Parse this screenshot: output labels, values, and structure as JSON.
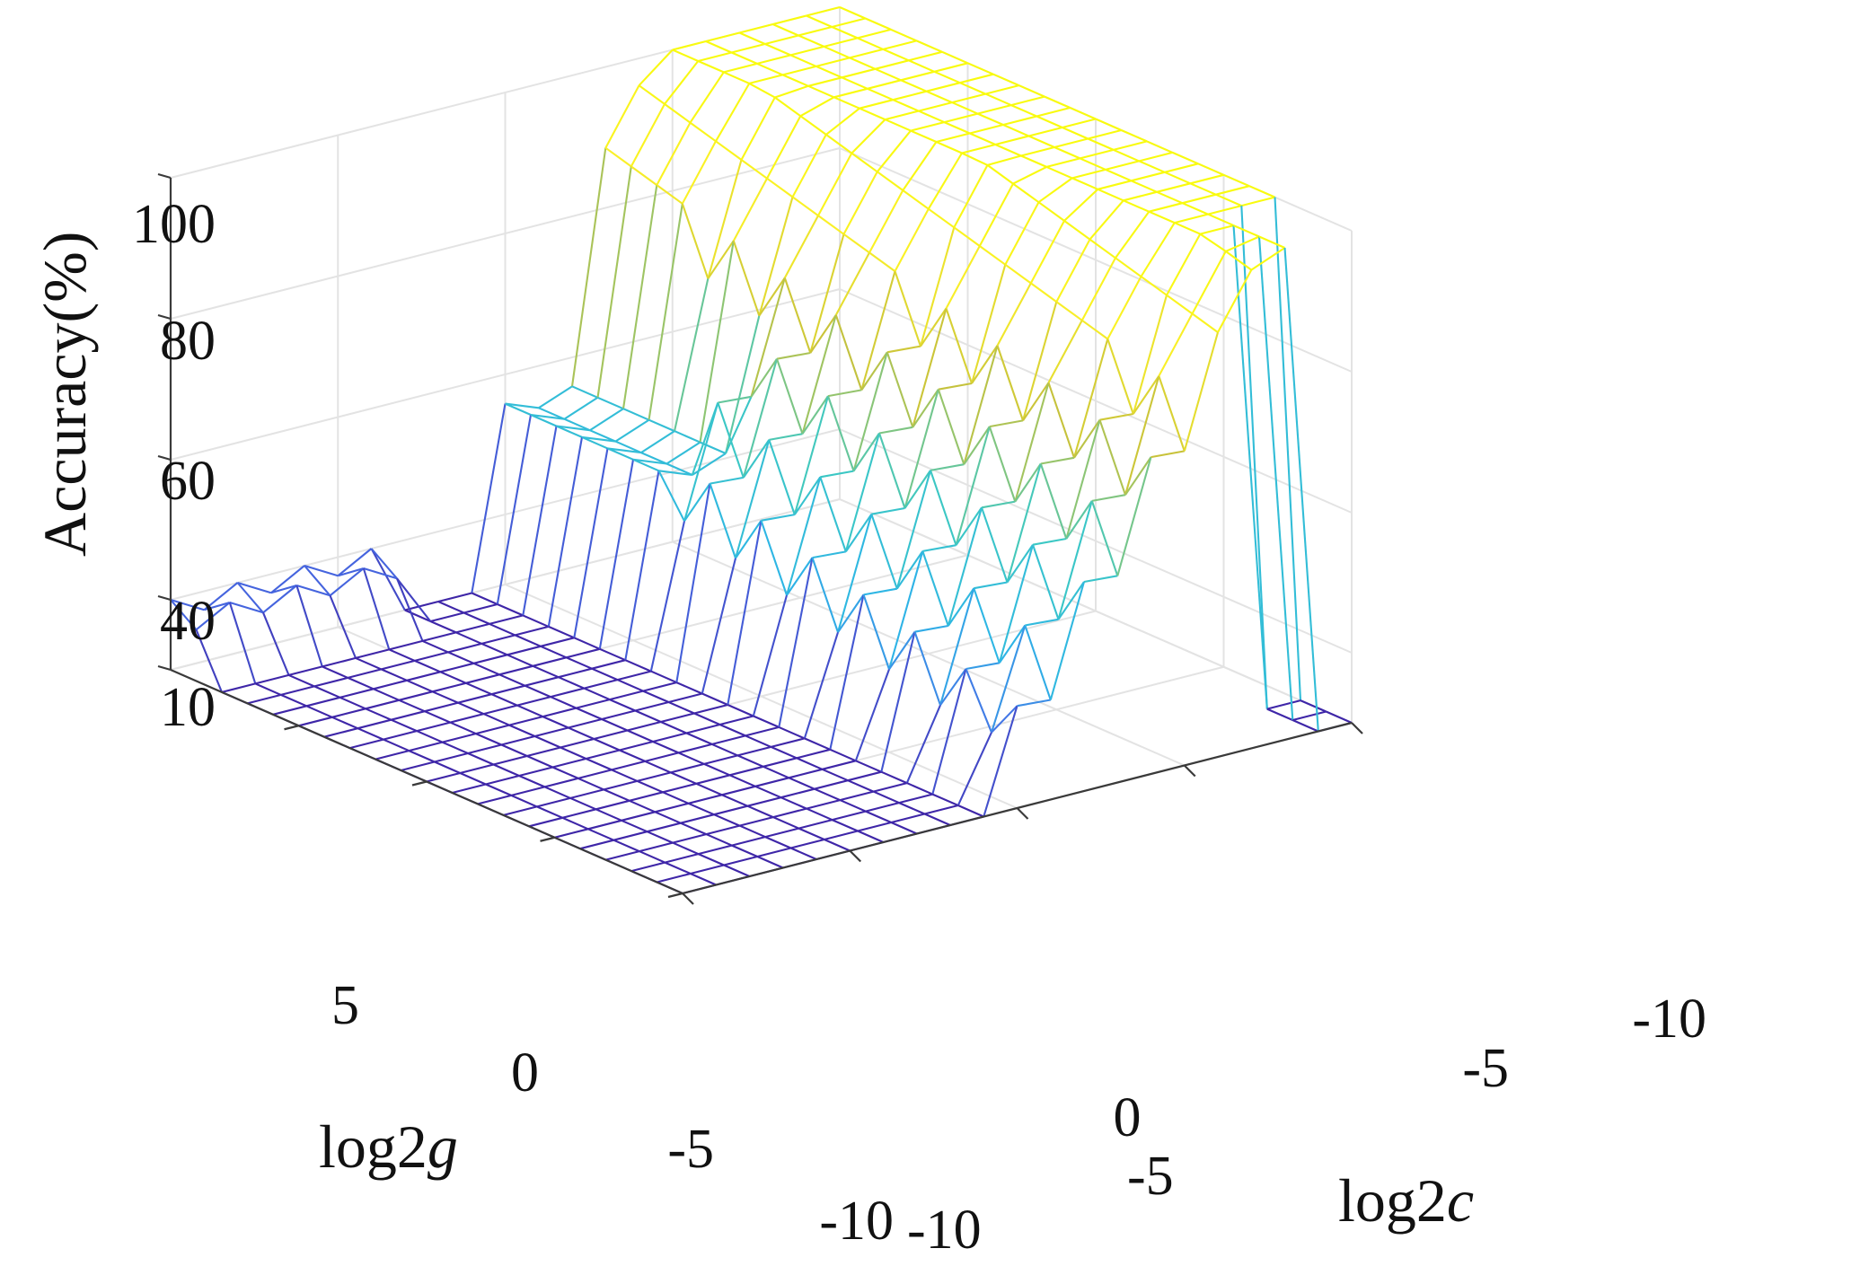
{
  "chart_data": {
    "type": "surface-mesh-3d",
    "title": "",
    "xlabel": "log2c",
    "ylabel": "log2g",
    "zlabel": "Accuracy(%)",
    "x_ticks": [
      -10,
      -5,
      0,
      -5,
      -10
    ],
    "x_tick_labels": [
      "-10",
      "-5",
      "0",
      "-5",
      "-10"
    ],
    "y_ticks": [
      5,
      0,
      -5,
      -10
    ],
    "y_tick_labels": [
      "5",
      "0",
      "-5",
      "-10"
    ],
    "z_ticks": [
      10,
      40,
      60,
      80,
      100
    ],
    "z_tick_labels": [
      "10",
      "40",
      "60",
      "80",
      "100"
    ],
    "zlim": [
      10,
      100
    ],
    "grid": true,
    "colormap": "parula",
    "colors": {
      "low": "#3e26a8",
      "mid_low": "#2db5e6",
      "mid": "#3fd0c0",
      "mid_high": "#c8c23a",
      "high": "#f9fb0e",
      "peak": "#f0a830"
    },
    "grid_resolution": [
      21,
      21
    ],
    "description": "Grid search accuracy surface over log2c and log2g (range -10..10). Accuracy is ~10% (floor) for high log2g and low log2c; a plateau near 60% at mid-region left; rises sharply to ~85-100% plateau for low log2g / high log2c, peaking near 100% in the back region.",
    "regions": [
      {
        "name": "floor",
        "accuracy": 10,
        "log2g_range": [
          -10,
          10
        ],
        "log2c_range": [
          -10,
          -1
        ]
      },
      {
        "name": "low-plateau",
        "accuracy": 60,
        "log2g_range": [
          5,
          10
        ],
        "log2c_range": [
          0,
          3
        ]
      },
      {
        "name": "rising-slope",
        "accuracy_range": [
          40,
          85
        ],
        "log2g_range": [
          -10,
          5
        ],
        "log2c_range": [
          0,
          4
        ]
      },
      {
        "name": "high-plateau",
        "accuracy_range": [
          88,
          100
        ],
        "log2g_range": [
          -10,
          5
        ],
        "log2c_range": [
          4,
          10
        ]
      }
    ]
  },
  "labels": {
    "z_axis_title": "Accuracy(%)",
    "g_axis_title_prefix": "log2",
    "g_axis_title_var": "g",
    "c_axis_title_prefix": "log2",
    "c_axis_title_var": "c",
    "z_ticks": [
      "100",
      "80",
      "60",
      "40",
      "10"
    ],
    "g_ticks": [
      "5",
      "0",
      "-5",
      "-10"
    ],
    "c_ticks": [
      "-10",
      "-5",
      "0",
      "-5",
      "-10"
    ]
  }
}
